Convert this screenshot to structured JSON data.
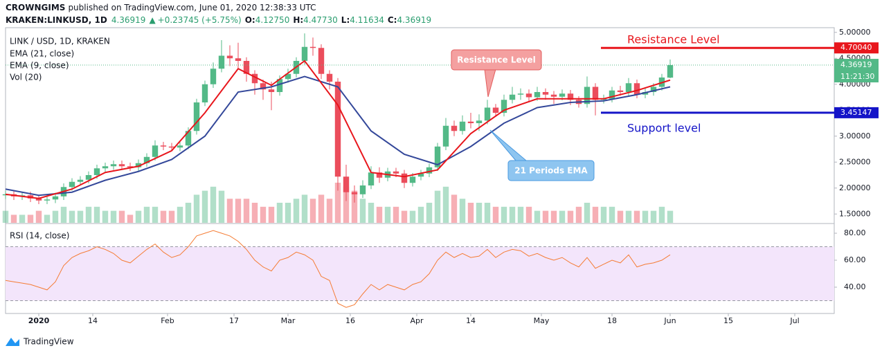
{
  "header": {
    "publisher": "CROWNGIMS",
    "published": "published on TradingView.com, June 01, 2020 12:38:33 UTC",
    "symbol": "KRAKEN:LINKUSD, 1D",
    "last": "4.36919",
    "arrow": "▲",
    "change": "+0.23745 (+5.75%)",
    "o_label": "O:",
    "o": "4.12750",
    "h_label": "H:",
    "h": "4.47730",
    "l_label": "L:",
    "l": "4.11634",
    "c_label": "C:",
    "c": "4.36919"
  },
  "footer": {
    "brand": "TradingView"
  },
  "chart_data": {
    "type": "candlestick",
    "title": "LINK / USD, 1D, KRAKEN",
    "volume_label": "Vol (20)",
    "rsi_label": "RSI (14, close)",
    "up_color": "#53b987",
    "down_color": "#eb4d5c",
    "xlim": [
      0,
      99.75
    ],
    "xticks": [
      {
        "value": 4,
        "label": "2020"
      },
      {
        "value": 10.5,
        "label": "14"
      },
      {
        "value": 19.5,
        "label": "Feb"
      },
      {
        "value": 27.5,
        "label": "17"
      },
      {
        "value": 34,
        "label": "Mar"
      },
      {
        "value": 41.5,
        "label": "16"
      },
      {
        "value": 49.5,
        "label": "Apr"
      },
      {
        "value": 56,
        "label": "14"
      },
      {
        "value": 64.5,
        "label": "May"
      },
      {
        "value": 73,
        "label": "18"
      },
      {
        "value": 80,
        "label": "Jun"
      },
      {
        "value": 87,
        "label": "15"
      },
      {
        "value": 95,
        "label": "Jul"
      }
    ],
    "ylim": [
      1.33,
      5.09
    ],
    "yticks": [
      {
        "value": 5,
        "label": "5.00000"
      },
      {
        "value": 4.5,
        "label": "4.50000"
      },
      {
        "value": 4,
        "label": "4.00000"
      },
      {
        "value": 3.5,
        "label": "3.50000"
      },
      {
        "value": 3,
        "label": "3.00000"
      },
      {
        "value": 2.5,
        "label": "2.50000"
      },
      {
        "value": 2,
        "label": "2.00000"
      },
      {
        "value": 1.5,
        "label": "1.50000"
      }
    ],
    "open": [
      1.86,
      1.88,
      1.84,
      1.86,
      1.8,
      1.76,
      1.78,
      1.84,
      2.02,
      2.12,
      2.16,
      2.25,
      2.38,
      2.42,
      2.46,
      2.42,
      2.4,
      2.48,
      2.6,
      2.82,
      2.8,
      2.78,
      2.82,
      3.1,
      3.65,
      4.0,
      4.3,
      4.55,
      4.5,
      4.45,
      4.2,
      4.02,
      3.9,
      3.85,
      4.1,
      4.2,
      4.45,
      4.72,
      4.7,
      4.2,
      4.05,
      2.22,
      1.92,
      1.88,
      2.05,
      2.3,
      2.2,
      2.32,
      2.28,
      2.1,
      2.22,
      2.28,
      2.4,
      2.8,
      3.2,
      3.1,
      3.28,
      3.25,
      3.3,
      3.55,
      3.45,
      3.7,
      3.8,
      3.82,
      3.75,
      3.85,
      3.8,
      3.76,
      3.82,
      3.7,
      3.62,
      3.95,
      3.7,
      3.72,
      3.88,
      3.85,
      4.02,
      3.8,
      3.85,
      3.95,
      4.1275
    ],
    "high": [
      1.95,
      1.95,
      1.93,
      1.93,
      1.87,
      1.85,
      1.91,
      2.09,
      2.19,
      2.23,
      2.32,
      2.45,
      2.49,
      2.53,
      2.53,
      2.49,
      2.55,
      2.67,
      2.92,
      2.89,
      2.87,
      2.89,
      3.17,
      3.72,
      4.07,
      4.42,
      4.85,
      4.75,
      4.8,
      4.52,
      4.27,
      4.09,
      4.05,
      4.17,
      4.3,
      4.52,
      4.98,
      4.9,
      4.77,
      4.27,
      4.12,
      2.45,
      2.05,
      2.15,
      2.42,
      2.4,
      2.39,
      2.39,
      2.35,
      2.29,
      2.35,
      2.47,
      2.87,
      3.35,
      3.3,
      3.4,
      3.45,
      3.42,
      3.7,
      3.62,
      3.8,
      3.95,
      3.92,
      3.9,
      3.95,
      3.92,
      3.87,
      3.9,
      3.89,
      3.77,
      4.15,
      4.02,
      3.8,
      3.95,
      3.97,
      4.12,
      4.09,
      3.92,
      4.02,
      4.2,
      4.4773
    ],
    "low": [
      1.79,
      1.77,
      1.77,
      1.73,
      1.69,
      1.69,
      1.71,
      1.77,
      1.95,
      2.05,
      2.09,
      2.18,
      2.31,
      2.35,
      2.35,
      2.33,
      2.33,
      2.41,
      2.53,
      2.73,
      2.71,
      2.71,
      2.75,
      3.03,
      3.58,
      3.93,
      4.23,
      4.35,
      4.3,
      4.05,
      3.8,
      3.7,
      3.5,
      3.78,
      4.03,
      4.13,
      4.38,
      4.55,
      4.1,
      3.9,
      1.95,
      1.75,
      1.72,
      1.81,
      1.98,
      2.1,
      2.13,
      2.21,
      2.0,
      2.03,
      2.15,
      2.21,
      2.33,
      2.73,
      3.0,
      3.03,
      3.15,
      3.1,
      3.23,
      3.38,
      3.38,
      3.63,
      3.7,
      3.65,
      3.68,
      3.7,
      3.62,
      3.69,
      3.6,
      3.55,
      3.55,
      3.4,
      3.63,
      3.65,
      3.78,
      3.78,
      3.73,
      3.73,
      3.78,
      3.88,
      4.11634
    ],
    "close": [
      1.88,
      1.84,
      1.86,
      1.8,
      1.76,
      1.78,
      1.84,
      2.02,
      2.12,
      2.16,
      2.25,
      2.38,
      2.42,
      2.46,
      2.42,
      2.4,
      2.48,
      2.6,
      2.82,
      2.8,
      2.78,
      2.82,
      3.1,
      3.65,
      4.0,
      4.3,
      4.55,
      4.5,
      4.45,
      4.2,
      4.02,
      3.9,
      3.85,
      4.1,
      4.2,
      4.45,
      4.72,
      4.7,
      4.2,
      4.05,
      2.22,
      1.92,
      1.88,
      2.05,
      2.3,
      2.2,
      2.32,
      2.28,
      2.1,
      2.22,
      2.28,
      2.4,
      2.8,
      3.2,
      3.1,
      3.28,
      3.25,
      3.3,
      3.55,
      3.45,
      3.7,
      3.8,
      3.82,
      3.75,
      3.85,
      3.8,
      3.76,
      3.82,
      3.7,
      3.62,
      3.95,
      3.7,
      3.72,
      3.88,
      3.85,
      4.02,
      3.8,
      3.85,
      3.95,
      4.13,
      4.36919
    ],
    "volume": [
      3,
      2,
      2,
      2,
      3,
      2,
      3,
      4,
      3,
      3,
      4,
      4,
      3,
      3,
      3,
      2,
      3,
      4,
      4,
      3,
      3,
      4,
      5,
      7,
      8,
      9,
      8,
      6,
      6,
      6,
      5,
      4,
      4,
      5,
      5,
      6,
      7,
      6,
      7,
      6,
      10,
      9,
      8,
      6,
      5,
      4,
      4,
      4,
      3,
      3,
      4,
      5,
      8,
      9,
      7,
      6,
      5,
      5,
      5,
      4,
      4,
      4,
      4,
      4,
      3,
      3,
      3,
      3,
      3,
      4,
      5,
      4,
      4,
      4,
      3,
      3,
      3,
      3,
      3,
      4,
      3
    ],
    "series": [
      {
        "name": "EMA (21, close)",
        "color": "#34489a",
        "x": [
          0,
          4,
          8,
          12,
          16,
          20,
          24,
          28,
          32,
          36,
          40,
          44,
          48,
          52,
          56,
          60,
          64,
          68,
          72,
          76,
          80
        ],
        "values": [
          1.98,
          1.86,
          1.92,
          2.15,
          2.32,
          2.55,
          3.0,
          3.85,
          3.95,
          4.15,
          3.95,
          3.1,
          2.65,
          2.45,
          2.8,
          3.25,
          3.55,
          3.65,
          3.68,
          3.8,
          3.95
        ]
      },
      {
        "name": "EMA (9, close)",
        "color": "#e8161c",
        "x": [
          0,
          4,
          8,
          12,
          16,
          20,
          24,
          28,
          32,
          36,
          40,
          44,
          48,
          52,
          56,
          60,
          64,
          68,
          72,
          76,
          80
        ],
        "values": [
          1.88,
          1.8,
          1.98,
          2.3,
          2.42,
          2.72,
          3.45,
          4.3,
          3.98,
          4.45,
          3.6,
          2.3,
          2.22,
          2.35,
          3.05,
          3.5,
          3.72,
          3.72,
          3.72,
          3.88,
          4.08
        ]
      }
    ],
    "rsi": {
      "color": "#f57c34",
      "ylim": [
        20.5,
        87.2
      ],
      "yticks": [
        {
          "value": 80,
          "label": "80.00"
        },
        {
          "value": 60,
          "label": "60.00"
        },
        {
          "value": 40,
          "label": "40.00"
        }
      ],
      "bands": [
        30,
        70
      ],
      "values": [
        45,
        44,
        43,
        42,
        40,
        38,
        44,
        56,
        62,
        65,
        67,
        70,
        68,
        65,
        60,
        58,
        63,
        68,
        72,
        66,
        62,
        64,
        70,
        78,
        80,
        82,
        80,
        78,
        74,
        68,
        60,
        55,
        52,
        60,
        62,
        66,
        64,
        60,
        48,
        45,
        28,
        25,
        27,
        35,
        42,
        38,
        42,
        40,
        38,
        42,
        44,
        50,
        60,
        66,
        62,
        65,
        62,
        63,
        68,
        62,
        66,
        68,
        67,
        63,
        65,
        62,
        60,
        62,
        58,
        55,
        62,
        54,
        57,
        60,
        58,
        64,
        55,
        57,
        58,
        60,
        64
      ]
    },
    "levels": [
      {
        "name": "Resistance Level",
        "value": 4.7004,
        "label": "4.70040",
        "color": "#e8161c"
      },
      {
        "name": "Support level",
        "value": 3.45147,
        "label": "3.45147",
        "color": "#1414c8"
      }
    ],
    "last_price": {
      "value": 4.36919,
      "label": "4.36919",
      "countdown": "11:21:30",
      "color": "#53b987"
    },
    "callouts": [
      {
        "text": "Resistance Level",
        "color": "#f4a0a0",
        "border": "#e25c5c"
      },
      {
        "text": "21 Periods EMA",
        "color": "#8ec5f0",
        "border": "#4a9ae0"
      }
    ]
  }
}
